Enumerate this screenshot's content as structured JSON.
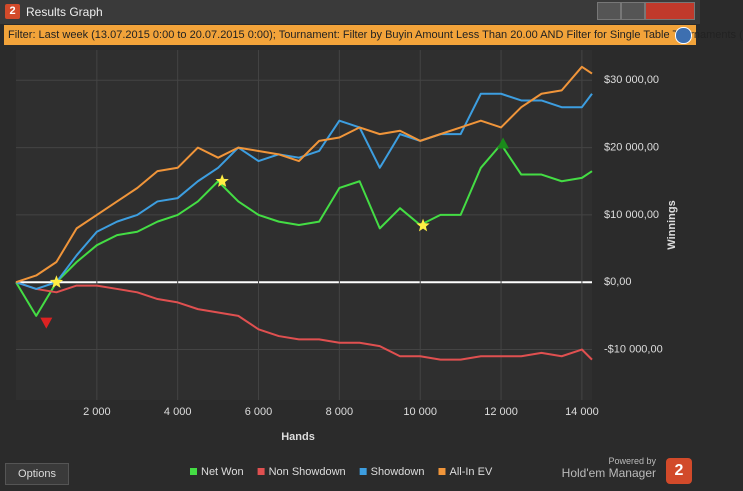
{
  "window": {
    "app_icon": "2",
    "title": "Results Graph"
  },
  "filter": "Filter: Last week (13.07.2015 0:00 to 20.07.2015 0:00); Tournament: Filter by Buyin Amount Less Than 20.00 AND Filter for Single Table Tournaments (",
  "options": "Options",
  "branding": {
    "powered_by": "Powered by",
    "name": "Hold'em Manager",
    "logo": "2"
  },
  "chart_data": {
    "type": "line",
    "x_label": "Hands",
    "y_label": "Winnings",
    "xlim": [
      0,
      14250
    ],
    "ylim": [
      -17500,
      34500
    ],
    "xticks": [
      {
        "value": 2000,
        "label": "2 000"
      },
      {
        "value": 4000,
        "label": "4 000"
      },
      {
        "value": 6000,
        "label": "6 000"
      },
      {
        "value": 8000,
        "label": "8 000"
      },
      {
        "value": 10000,
        "label": "10 000"
      },
      {
        "value": 12000,
        "label": "12 000"
      },
      {
        "value": 14000,
        "label": "14 000"
      }
    ],
    "yticks": [
      {
        "value": -10000,
        "label": "-$10 000,00"
      },
      {
        "value": 0,
        "label": "$0,00"
      },
      {
        "value": 10000,
        "label": "$10 000,00"
      },
      {
        "value": 20000,
        "label": "$20 000,00"
      },
      {
        "value": 30000,
        "label": "$30 000,00"
      }
    ],
    "grid": true,
    "y_axis_side": "right",
    "zero_line_color": "#ffffff",
    "x": [
      0,
      500,
      1000,
      1500,
      2000,
      2500,
      3000,
      3500,
      4000,
      4500,
      5000,
      5500,
      6000,
      6500,
      7000,
      7500,
      8000,
      8500,
      9000,
      9500,
      10000,
      10500,
      11000,
      11500,
      12000,
      12500,
      13000,
      13500,
      14000,
      14250
    ],
    "series": [
      {
        "name": "Net Won",
        "color": "#44dd44",
        "values": [
          0,
          -5000,
          0,
          3000,
          5500,
          7000,
          7500,
          9000,
          10000,
          12000,
          15000,
          12000,
          10000,
          9000,
          8500,
          9000,
          14000,
          15000,
          8000,
          11000,
          8500,
          10000,
          10000,
          17000,
          20500,
          16000,
          16000,
          15000,
          15500,
          16500
        ]
      },
      {
        "name": "Non Showdown",
        "color": "#e05050",
        "values": [
          0,
          -1000,
          -1500,
          -500,
          -500,
          -1000,
          -1500,
          -2500,
          -3000,
          -4000,
          -4500,
          -5000,
          -7000,
          -8000,
          -8500,
          -8500,
          -9000,
          -9000,
          -9500,
          -11000,
          -11000,
          -11500,
          -11500,
          -11000,
          -11000,
          -11000,
          -10500,
          -11000,
          -10000,
          -11500
        ]
      },
      {
        "name": "Showdown",
        "color": "#3d9ee0",
        "values": [
          0,
          -1000,
          0,
          4000,
          7500,
          9000,
          10000,
          12000,
          12500,
          15000,
          17000,
          20000,
          18000,
          19000,
          18500,
          19500,
          24000,
          23000,
          17000,
          22000,
          21000,
          22000,
          22000,
          28000,
          28000,
          27000,
          27000,
          26000,
          26000,
          28000
        ]
      },
      {
        "name": "All-In EV",
        "color": "#f0953a",
        "values": [
          0,
          1000,
          3000,
          8000,
          10000,
          12000,
          14000,
          16500,
          17000,
          20000,
          18500,
          20000,
          19500,
          19000,
          18000,
          21000,
          21500,
          23000,
          22000,
          22500,
          21000,
          22000,
          23000,
          24000,
          23000,
          26000,
          28000,
          28500,
          32000,
          31000
        ]
      }
    ],
    "markers": [
      {
        "x": 1000,
        "y": 0,
        "shape": "star",
        "color": "#ffee44"
      },
      {
        "x": 5100,
        "y": 15000,
        "shape": "star",
        "color": "#ffee44"
      },
      {
        "x": 10070,
        "y": 8400,
        "shape": "star",
        "color": "#ffee44"
      },
      {
        "x": 750,
        "y": -6000,
        "shape": "triangle-down",
        "color": "#dd2222"
      },
      {
        "x": 12050,
        "y": 20600,
        "shape": "triangle-up",
        "color": "#1a8a1a"
      }
    ]
  }
}
